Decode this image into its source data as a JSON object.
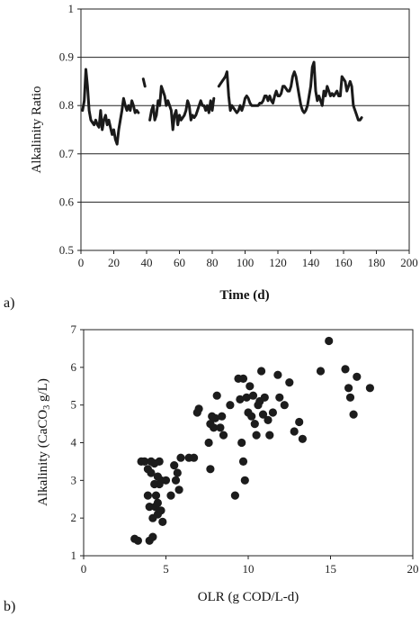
{
  "chart_data": [
    {
      "type": "line",
      "panel_label": "a)",
      "xlabel": "Time (d)",
      "ylabel": "Alkalinity Ratio",
      "xlim": [
        0,
        200
      ],
      "ylim": [
        0.5,
        1
      ],
      "xticks": [
        "0",
        "20",
        "40",
        "60",
        "80",
        "100",
        "120",
        "140",
        "160",
        "180",
        "200"
      ],
      "yticks": [
        "0.5",
        "0.6",
        "0.7",
        "0.8",
        "0.9",
        "1"
      ],
      "grid": "horizontal",
      "series": [
        {
          "segments": [
            [
              [
                1,
                0.79
              ],
              [
                2,
                0.81
              ],
              [
                3,
                0.875
              ],
              [
                4,
                0.84
              ],
              [
                5,
                0.79
              ],
              [
                6,
                0.77
              ],
              [
                7,
                0.765
              ],
              [
                8,
                0.76
              ],
              [
                9,
                0.77
              ],
              [
                10,
                0.76
              ],
              [
                11,
                0.755
              ],
              [
                12,
                0.79
              ],
              [
                13,
                0.75
              ],
              [
                14,
                0.77
              ],
              [
                15,
                0.78
              ],
              [
                16,
                0.76
              ],
              [
                17,
                0.77
              ],
              [
                18,
                0.755
              ],
              [
                19,
                0.74
              ],
              [
                20,
                0.75
              ],
              [
                21,
                0.73
              ],
              [
                22,
                0.72
              ],
              [
                23,
                0.75
              ],
              [
                24,
                0.77
              ],
              [
                25,
                0.79
              ],
              [
                26,
                0.815
              ],
              [
                27,
                0.8
              ],
              [
                28,
                0.79
              ],
              [
                29,
                0.8
              ],
              [
                30,
                0.79
              ],
              [
                31,
                0.81
              ],
              [
                32,
                0.8
              ],
              [
                33,
                0.785
              ],
              [
                34,
                0.79
              ],
              [
                35,
                0.785
              ]
            ],
            [
              [
                38,
                0.855
              ],
              [
                39,
                0.84
              ]
            ],
            [
              [
                42,
                0.77
              ],
              [
                43,
                0.79
              ],
              [
                44,
                0.8
              ],
              [
                45,
                0.77
              ],
              [
                46,
                0.78
              ],
              [
                47,
                0.81
              ],
              [
                48,
                0.8
              ],
              [
                49,
                0.84
              ],
              [
                50,
                0.83
              ],
              [
                51,
                0.82
              ],
              [
                52,
                0.8
              ],
              [
                53,
                0.81
              ],
              [
                54,
                0.8
              ],
              [
                55,
                0.79
              ],
              [
                56,
                0.75
              ],
              [
                57,
                0.78
              ],
              [
                58,
                0.79
              ],
              [
                59,
                0.76
              ],
              [
                60,
                0.78
              ],
              [
                61,
                0.77
              ],
              [
                62,
                0.775
              ],
              [
                63,
                0.78
              ],
              [
                64,
                0.79
              ],
              [
                65,
                0.81
              ],
              [
                66,
                0.8
              ],
              [
                67,
                0.77
              ],
              [
                68,
                0.78
              ],
              [
                69,
                0.775
              ],
              [
                70,
                0.78
              ],
              [
                71,
                0.79
              ],
              [
                72,
                0.8
              ],
              [
                73,
                0.81
              ],
              [
                74,
                0.8
              ],
              [
                75,
                0.8
              ],
              [
                76,
                0.79
              ],
              [
                77,
                0.8
              ],
              [
                78,
                0.785
              ],
              [
                79,
                0.81
              ],
              [
                80,
                0.79
              ],
              [
                81,
                0.815
              ]
            ],
            [
              [
                84,
                0.84
              ],
              [
                85,
                0.845
              ],
              [
                86,
                0.85
              ],
              [
                87,
                0.855
              ],
              [
                88,
                0.86
              ],
              [
                89,
                0.87
              ],
              [
                90,
                0.82
              ],
              [
                91,
                0.79
              ],
              [
                92,
                0.8
              ],
              [
                93,
                0.795
              ],
              [
                94,
                0.79
              ],
              [
                95,
                0.785
              ],
              [
                96,
                0.79
              ],
              [
                97,
                0.8
              ],
              [
                98,
                0.79
              ],
              [
                99,
                0.8
              ],
              [
                100,
                0.815
              ],
              [
                101,
                0.82
              ],
              [
                102,
                0.815
              ],
              [
                103,
                0.805
              ],
              [
                104,
                0.8
              ],
              [
                105,
                0.8
              ],
              [
                106,
                0.8
              ],
              [
                107,
                0.8
              ],
              [
                108,
                0.8
              ],
              [
                109,
                0.805
              ],
              [
                110,
                0.805
              ],
              [
                111,
                0.81
              ],
              [
                112,
                0.82
              ],
              [
                113,
                0.82
              ],
              [
                114,
                0.81
              ],
              [
                115,
                0.82
              ],
              [
                116,
                0.81
              ],
              [
                117,
                0.805
              ],
              [
                118,
                0.82
              ],
              [
                119,
                0.83
              ],
              [
                120,
                0.82
              ],
              [
                121,
                0.82
              ],
              [
                122,
                0.825
              ],
              [
                123,
                0.84
              ],
              [
                124,
                0.84
              ],
              [
                125,
                0.835
              ],
              [
                126,
                0.83
              ],
              [
                127,
                0.83
              ],
              [
                128,
                0.84
              ],
              [
                129,
                0.86
              ],
              [
                130,
                0.87
              ],
              [
                131,
                0.86
              ],
              [
                132,
                0.84
              ],
              [
                133,
                0.82
              ],
              [
                134,
                0.8
              ],
              [
                135,
                0.79
              ],
              [
                136,
                0.785
              ],
              [
                137,
                0.79
              ],
              [
                138,
                0.8
              ],
              [
                139,
                0.82
              ],
              [
                140,
                0.84
              ],
              [
                141,
                0.88
              ],
              [
                142,
                0.89
              ],
              [
                143,
                0.83
              ],
              [
                144,
                0.81
              ],
              [
                145,
                0.82
              ],
              [
                146,
                0.81
              ],
              [
                147,
                0.8
              ],
              [
                148,
                0.83
              ],
              [
                149,
                0.82
              ],
              [
                150,
                0.84
              ],
              [
                151,
                0.83
              ],
              [
                152,
                0.82
              ],
              [
                153,
                0.825
              ],
              [
                154,
                0.82
              ],
              [
                155,
                0.825
              ],
              [
                156,
                0.83
              ],
              [
                157,
                0.82
              ],
              [
                158,
                0.82
              ],
              [
                159,
                0.86
              ],
              [
                160,
                0.855
              ],
              [
                161,
                0.85
              ],
              [
                162,
                0.83
              ],
              [
                163,
                0.84
              ],
              [
                164,
                0.85
              ],
              [
                165,
                0.84
              ],
              [
                166,
                0.8
              ],
              [
                167,
                0.79
              ],
              [
                168,
                0.78
              ],
              [
                169,
                0.77
              ],
              [
                170,
                0.77
              ],
              [
                171,
                0.775
              ]
            ]
          ]
        }
      ]
    },
    {
      "type": "scatter",
      "panel_label": "b)",
      "xlabel_pre": "OLR (g COD/L-d)",
      "ylabel_pre": "Alkalinity (CaCO",
      "ylabel_sub": "3",
      "ylabel_post": " g/L)",
      "xlim": [
        0,
        20
      ],
      "ylim": [
        1,
        7
      ],
      "xticks": [
        "0",
        "5",
        "10",
        "15",
        "20"
      ],
      "yticks": [
        "1",
        "2",
        "3",
        "4",
        "5",
        "6",
        "7"
      ],
      "grid": "none",
      "points": [
        [
          3.1,
          1.45
        ],
        [
          3.3,
          1.4
        ],
        [
          3.5,
          3.5
        ],
        [
          3.7,
          3.5
        ],
        [
          3.9,
          3.3
        ],
        [
          3.9,
          2.6
        ],
        [
          4.0,
          2.3
        ],
        [
          4.0,
          1.4
        ],
        [
          4.1,
          3.5
        ],
        [
          4.1,
          3.2
        ],
        [
          4.2,
          2.0
        ],
        [
          4.2,
          1.5
        ],
        [
          4.3,
          3.45
        ],
        [
          4.3,
          2.9
        ],
        [
          4.35,
          2.3
        ],
        [
          4.4,
          2.6
        ],
        [
          4.5,
          3.1
        ],
        [
          4.5,
          2.4
        ],
        [
          4.5,
          2.1
        ],
        [
          4.6,
          3.5
        ],
        [
          4.6,
          2.9
        ],
        [
          4.7,
          3.0
        ],
        [
          4.7,
          2.2
        ],
        [
          4.8,
          1.9
        ],
        [
          5.0,
          3.0
        ],
        [
          5.3,
          2.6
        ],
        [
          5.5,
          3.4
        ],
        [
          5.6,
          3.0
        ],
        [
          5.7,
          3.2
        ],
        [
          5.8,
          2.75
        ],
        [
          5.9,
          3.6
        ],
        [
          6.4,
          3.6
        ],
        [
          6.7,
          3.6
        ],
        [
          6.9,
          4.8
        ],
        [
          7.0,
          4.9
        ],
        [
          7.6,
          4.0
        ],
        [
          7.7,
          4.5
        ],
        [
          7.7,
          3.3
        ],
        [
          7.8,
          4.7
        ],
        [
          7.9,
          4.4
        ],
        [
          8.0,
          4.65
        ],
        [
          8.1,
          5.25
        ],
        [
          8.3,
          4.4
        ],
        [
          8.4,
          4.7
        ],
        [
          8.5,
          4.2
        ],
        [
          8.9,
          5.0
        ],
        [
          9.2,
          2.6
        ],
        [
          9.4,
          5.7
        ],
        [
          9.5,
          5.15
        ],
        [
          9.6,
          4.0
        ],
        [
          9.7,
          5.7
        ],
        [
          9.7,
          3.5
        ],
        [
          9.8,
          3.0
        ],
        [
          9.9,
          5.2
        ],
        [
          10.0,
          4.8
        ],
        [
          10.1,
          5.5
        ],
        [
          10.2,
          4.7
        ],
        [
          10.3,
          5.25
        ],
        [
          10.4,
          4.5
        ],
        [
          10.5,
          4.2
        ],
        [
          10.6,
          5.0
        ],
        [
          10.7,
          5.1
        ],
        [
          10.8,
          5.9
        ],
        [
          10.9,
          4.75
        ],
        [
          11.0,
          5.2
        ],
        [
          11.2,
          4.6
        ],
        [
          11.3,
          4.2
        ],
        [
          11.5,
          4.8
        ],
        [
          11.8,
          5.8
        ],
        [
          11.9,
          5.2
        ],
        [
          12.2,
          5.0
        ],
        [
          12.5,
          5.6
        ],
        [
          12.8,
          4.3
        ],
        [
          13.1,
          4.55
        ],
        [
          13.3,
          4.1
        ],
        [
          14.4,
          5.9
        ],
        [
          14.9,
          6.7
        ],
        [
          15.9,
          5.95
        ],
        [
          16.1,
          5.45
        ],
        [
          16.2,
          5.2
        ],
        [
          16.4,
          4.75
        ],
        [
          16.6,
          5.75
        ],
        [
          17.4,
          5.45
        ]
      ]
    }
  ]
}
